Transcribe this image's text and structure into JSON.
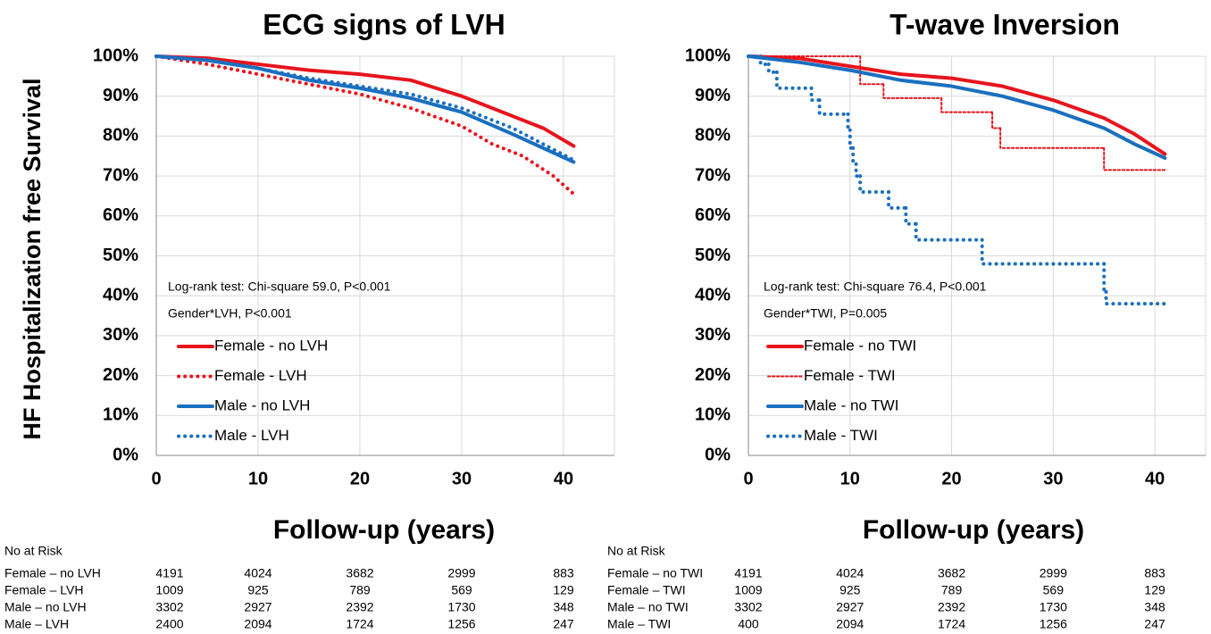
{
  "chart_data": [
    {
      "type": "line",
      "title": "ECG signs of LVH",
      "ylabel": "HF Hospitalization free Survival",
      "xlabel": "Follow-up (years)",
      "xlim": [
        0,
        45
      ],
      "xticks": [
        0,
        10,
        20,
        30,
        40
      ],
      "ylim": [
        0,
        100
      ],
      "yticks": [
        {
          "value": 0,
          "label": "0%"
        },
        {
          "value": 10,
          "label": "10%"
        },
        {
          "value": 20,
          "label": "20%"
        },
        {
          "value": 30,
          "label": "30%"
        },
        {
          "value": 40,
          "label": "40%"
        },
        {
          "value": 50,
          "label": "50%"
        },
        {
          "value": 60,
          "label": "60%"
        },
        {
          "value": 70,
          "label": "70%"
        },
        {
          "value": 80,
          "label": "80%"
        },
        {
          "value": 90,
          "label": "90%"
        },
        {
          "value": 100,
          "label": "100%"
        }
      ],
      "grid": true,
      "legend": "lower left",
      "annotations": [
        "Log-rank test: Chi-square 59.0, P<0.001",
        "Gender*LVH, P<0.001"
      ],
      "series": [
        {
          "name": "Female - no LVH",
          "color": "#e8141c",
          "style": "solid",
          "linewidth": 4,
          "drawstyle": "line",
          "x": [
            0,
            5,
            10,
            15,
            20,
            25,
            30,
            35,
            38,
            41
          ],
          "values": [
            100,
            99.5,
            98,
            96.5,
            95.5,
            94,
            90,
            85,
            82,
            77.5
          ]
        },
        {
          "name": "Female - LVH",
          "color": "#e8141c",
          "style": "dotted",
          "linewidth": 4,
          "drawstyle": "line",
          "x": [
            0,
            5,
            10,
            15,
            20,
            25,
            30,
            33,
            36,
            39,
            41
          ],
          "values": [
            100,
            98,
            95.5,
            93,
            90.5,
            87,
            82.5,
            78,
            75,
            70,
            65.5
          ]
        },
        {
          "name": "Male - no LVH",
          "color": "#1a6fc0",
          "style": "solid",
          "linewidth": 4,
          "drawstyle": "line",
          "x": [
            0,
            5,
            10,
            15,
            20,
            25,
            30,
            35,
            38,
            41
          ],
          "values": [
            100,
            99,
            97,
            94,
            92,
            89.5,
            86,
            80.5,
            77,
            73.5
          ]
        },
        {
          "name": "Male - LVH",
          "color": "#1a6fc0",
          "style": "dotted",
          "linewidth": 4,
          "drawstyle": "line",
          "x": [
            0,
            5,
            10,
            15,
            20,
            25,
            30,
            35,
            38,
            41
          ],
          "values": [
            100,
            99,
            97,
            94.5,
            92.5,
            90.5,
            87,
            82,
            78,
            74
          ]
        }
      ],
      "risk_table": {
        "title": "No at Risk",
        "rows": [
          {
            "label": "Female – no LVH",
            "values": [
              4191,
              4024,
              3682,
              2999,
              883
            ]
          },
          {
            "label": "Female – LVH",
            "values": [
              1009,
              925,
              789,
              569,
              129
            ]
          },
          {
            "label": "Male – no LVH",
            "values": [
              3302,
              2927,
              2392,
              1730,
              348
            ]
          },
          {
            "label": "Male – LVH",
            "values": [
              2400,
              2094,
              1724,
              1256,
              247
            ]
          }
        ]
      }
    },
    {
      "type": "line",
      "title": "T-wave Inversion",
      "xlabel": "Follow-up (years)",
      "xlim": [
        0,
        45
      ],
      "xticks": [
        0,
        10,
        20,
        30,
        40
      ],
      "ylim": [
        0,
        100
      ],
      "yticks": [
        {
          "value": 0,
          "label": "0%"
        },
        {
          "value": 10,
          "label": "10%"
        },
        {
          "value": 20,
          "label": "20%"
        },
        {
          "value": 30,
          "label": "30%"
        },
        {
          "value": 40,
          "label": "40%"
        },
        {
          "value": 50,
          "label": "50%"
        },
        {
          "value": 60,
          "label": "60%"
        },
        {
          "value": 70,
          "label": "70%"
        },
        {
          "value": 80,
          "label": "80%"
        },
        {
          "value": 90,
          "label": "90%"
        },
        {
          "value": 100,
          "label": "100%"
        }
      ],
      "grid": true,
      "legend": "lower left",
      "annotations": [
        "Log-rank test: Chi-square 76.4, P<0.001",
        "Gender*TWI, P=0.005"
      ],
      "series": [
        {
          "name": "Female - no TWI",
          "color": "#e8141c",
          "style": "solid",
          "linewidth": 4,
          "drawstyle": "line",
          "x": [
            0,
            5,
            10,
            15,
            20,
            25,
            30,
            35,
            38,
            41
          ],
          "values": [
            100,
            99.5,
            97.5,
            95.5,
            94.5,
            92.5,
            89,
            84.5,
            80.5,
            75.5
          ]
        },
        {
          "name": "Female - TWI",
          "color": "#e8141c",
          "style": "dotted",
          "linewidth": 2,
          "drawstyle": "steps",
          "x": [
            0,
            11,
            13.3,
            19,
            24,
            24.8,
            35,
            41
          ],
          "values": [
            100,
            93,
            89.5,
            86,
            82,
            77,
            71.5,
            71.5
          ]
        },
        {
          "name": "Male - no TWI",
          "color": "#1a6fc0",
          "style": "solid",
          "linewidth": 4,
          "drawstyle": "line",
          "x": [
            0,
            5,
            10,
            15,
            20,
            25,
            30,
            35,
            38,
            41
          ],
          "values": [
            100,
            98.5,
            96.5,
            94,
            92.5,
            90,
            86.5,
            82,
            78,
            74.5
          ]
        },
        {
          "name": "Male - TWI",
          "color": "#1a6fc0",
          "style": "dotted",
          "linewidth": 4,
          "drawstyle": "steps",
          "x": [
            0,
            1.2,
            2,
            2.8,
            6.2,
            7,
            9.8,
            10,
            10.3,
            10.6,
            11,
            13.8,
            15.5,
            16.5,
            23,
            35,
            35.2,
            41
          ],
          "values": [
            100,
            98,
            96,
            92,
            89,
            85.5,
            81.5,
            77,
            73,
            70,
            66,
            62,
            58,
            54,
            48,
            41,
            38,
            38
          ]
        }
      ],
      "risk_table": {
        "title": "No at Risk",
        "rows": [
          {
            "label": "Female – no TWI",
            "values": [
              4191,
              4024,
              3682,
              2999,
              883
            ]
          },
          {
            "label": "Female – TWI",
            "values": [
              1009,
              925,
              789,
              569,
              129
            ]
          },
          {
            "label": "Male – no TWI",
            "values": [
              3302,
              2927,
              2392,
              1730,
              348
            ]
          },
          {
            "label": "Male – TWI",
            "values": [
              400,
              2094,
              1724,
              1256,
              247
            ]
          }
        ]
      }
    }
  ]
}
